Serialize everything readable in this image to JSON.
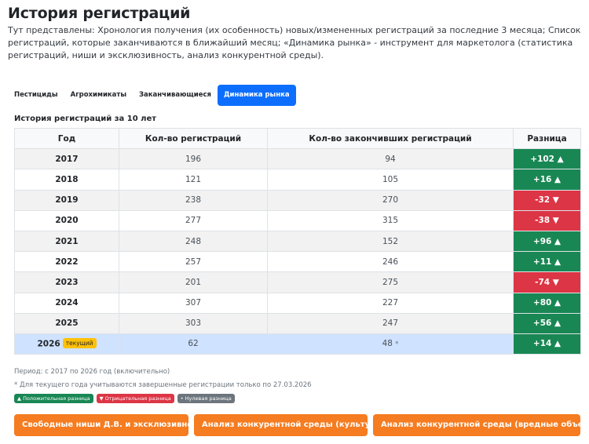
{
  "page": {
    "title": "История регистраций",
    "description": "Тут представлены: Хронология получения (их особенность) новых/измененных регистраций за последние 3 месяца; Список регистраций, которые заканчиваются в ближайший месяц; «Динамика рынка» - инструмент для маркетолога (статистика регистраций, ниши и эксклюзивность, анализ конкурентной среды)."
  },
  "tabs": [
    {
      "label": "Пестициды",
      "active": false
    },
    {
      "label": "Агрохимикаты",
      "active": false
    },
    {
      "label": "Заканчивающиеся",
      "active": false
    },
    {
      "label": "Динамика рынка",
      "active": true
    }
  ],
  "table": {
    "title": "История регистраций за 10 лет",
    "headers": {
      "year": "Год",
      "registrations": "Кол-во регистраций",
      "expired": "Кол-во закончивших регистраций",
      "difference": "Разница"
    },
    "rows": [
      {
        "year": "2017",
        "registrations": "196",
        "expired": "94",
        "difference": "+102 ▲",
        "sign": "pos"
      },
      {
        "year": "2018",
        "registrations": "121",
        "expired": "105",
        "difference": "+16 ▲",
        "sign": "pos"
      },
      {
        "year": "2019",
        "registrations": "238",
        "expired": "270",
        "difference": "-32 ▼",
        "sign": "neg"
      },
      {
        "year": "2020",
        "registrations": "277",
        "expired": "315",
        "difference": "-38 ▼",
        "sign": "neg"
      },
      {
        "year": "2021",
        "registrations": "248",
        "expired": "152",
        "difference": "+96 ▲",
        "sign": "pos"
      },
      {
        "year": "2022",
        "registrations": "257",
        "expired": "246",
        "difference": "+11 ▲",
        "sign": "pos"
      },
      {
        "year": "2023",
        "registrations": "201",
        "expired": "275",
        "difference": "-74 ▼",
        "sign": "neg"
      },
      {
        "year": "2024",
        "registrations": "307",
        "expired": "227",
        "difference": "+80 ▲",
        "sign": "pos"
      },
      {
        "year": "2025",
        "registrations": "303",
        "expired": "247",
        "difference": "+56 ▲",
        "sign": "pos"
      },
      {
        "year": "2026",
        "registrations": "62",
        "expired": "48",
        "difference": "+14 ▲",
        "sign": "pos",
        "current": true,
        "badge": "текущий",
        "expired_mark": "*"
      }
    ]
  },
  "notes": {
    "period": "Период: с 2017 по 2026 год (включительно)",
    "footnote": "* Для текущего года учитываются завершенные регистрации только по 27.03.2026"
  },
  "legend": {
    "positive": "▲ Положительная разница",
    "negative": "▼ Отрицательная разница",
    "zero": "• Нулевая разница"
  },
  "colors": {
    "positive": "#198754",
    "negative": "#dc3545",
    "neutral": "#6c757d",
    "accent": "#0d6efd",
    "action": "#f57c20",
    "current_row": "#cfe2ff",
    "badge": "#ffc107"
  },
  "actions": [
    {
      "label": "Свободные ниши Д.В. и эксклюзивность"
    },
    {
      "label": "Анализ конкурентной среды (культуры)"
    },
    {
      "label": "Анализ конкурентной среды (вредные объекты)"
    }
  ]
}
